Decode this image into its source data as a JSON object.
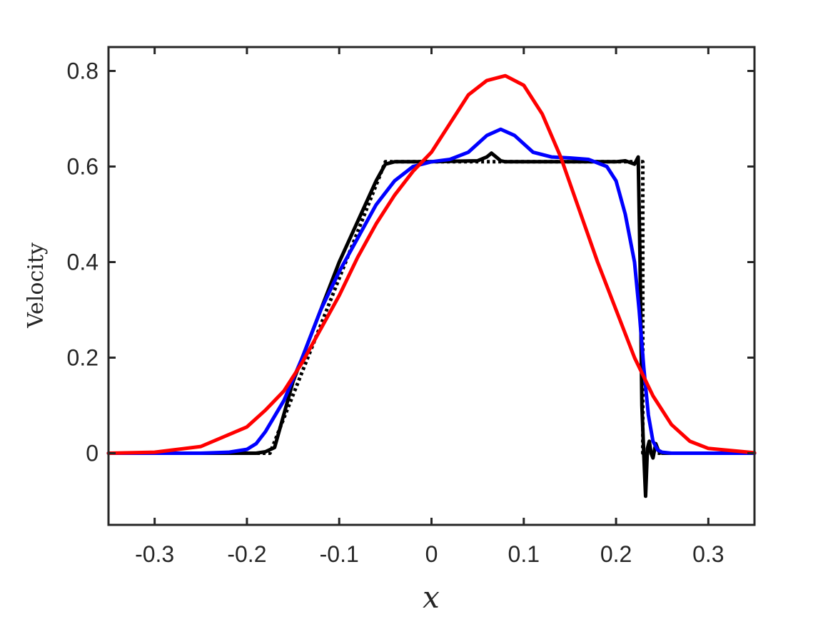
{
  "chart_data": {
    "type": "line",
    "xlabel": "x",
    "ylabel": "Velocity",
    "xlim": [
      -0.35,
      0.35
    ],
    "ylim": [
      -0.15,
      0.85
    ],
    "xticks": [
      -0.3,
      -0.2,
      -0.1,
      0,
      0.1,
      0.2,
      0.3
    ],
    "xtick_labels": [
      "-0.3",
      "-0.2",
      "-0.1",
      "0",
      "0.1",
      "0.2",
      "0.3"
    ],
    "yticks": [
      0,
      0.2,
      0.4,
      0.6,
      0.8
    ],
    "ytick_labels": [
      "0",
      "0.2",
      "0.4",
      "0.6",
      "0.8"
    ],
    "grid": false,
    "box": true,
    "series": [
      {
        "color": "#000000",
        "style": "dotted",
        "x": [
          -0.35,
          -0.175,
          -0.05,
          0.229,
          0.229,
          0.35
        ],
        "y": [
          0,
          0,
          0.61,
          0.61,
          0,
          0
        ]
      },
      {
        "color": "#000000",
        "style": "solid",
        "x": [
          -0.35,
          -0.19,
          -0.18,
          -0.17,
          -0.15,
          -0.1,
          -0.06,
          -0.05,
          -0.04,
          0.0,
          0.05,
          0.06,
          0.065,
          0.07,
          0.075,
          0.08,
          0.1,
          0.15,
          0.2,
          0.21,
          0.22,
          0.224,
          0.226,
          0.228,
          0.23,
          0.232,
          0.234,
          0.236,
          0.238,
          0.24,
          0.243,
          0.246,
          0.25,
          0.26,
          0.35
        ],
        "y": [
          0,
          0,
          0.003,
          0.012,
          0.15,
          0.4,
          0.57,
          0.605,
          0.61,
          0.61,
          0.612,
          0.62,
          0.628,
          0.62,
          0.612,
          0.61,
          0.61,
          0.61,
          0.61,
          0.612,
          0.605,
          0.62,
          0.4,
          0.1,
          0.0,
          -0.09,
          0.01,
          0.025,
          0.0,
          -0.01,
          0.02,
          0.005,
          0.0,
          0.0,
          0
        ]
      },
      {
        "color": "#0000ff",
        "style": "solid",
        "x": [
          -0.35,
          -0.25,
          -0.22,
          -0.2,
          -0.19,
          -0.18,
          -0.16,
          -0.14,
          -0.12,
          -0.1,
          -0.08,
          -0.06,
          -0.04,
          -0.02,
          0.0,
          0.02,
          0.04,
          0.06,
          0.075,
          0.09,
          0.11,
          0.13,
          0.15,
          0.17,
          0.19,
          0.2,
          0.21,
          0.22,
          0.225,
          0.23,
          0.235,
          0.24,
          0.245,
          0.25,
          0.26,
          0.35
        ],
        "y": [
          0,
          0,
          0.002,
          0.008,
          0.02,
          0.045,
          0.11,
          0.2,
          0.3,
          0.38,
          0.45,
          0.52,
          0.57,
          0.6,
          0.61,
          0.615,
          0.63,
          0.665,
          0.678,
          0.665,
          0.63,
          0.62,
          0.618,
          0.615,
          0.6,
          0.57,
          0.5,
          0.4,
          0.3,
          0.18,
          0.08,
          0.025,
          0.007,
          0.002,
          0,
          0
        ]
      },
      {
        "color": "#ff0000",
        "style": "solid",
        "x": [
          -0.35,
          -0.3,
          -0.25,
          -0.2,
          -0.18,
          -0.16,
          -0.14,
          -0.12,
          -0.1,
          -0.08,
          -0.06,
          -0.04,
          -0.02,
          0.0,
          0.02,
          0.04,
          0.06,
          0.08,
          0.1,
          0.12,
          0.14,
          0.16,
          0.18,
          0.2,
          0.22,
          0.24,
          0.26,
          0.28,
          0.3,
          0.35
        ],
        "y": [
          0,
          0.002,
          0.014,
          0.055,
          0.09,
          0.13,
          0.19,
          0.26,
          0.33,
          0.41,
          0.48,
          0.54,
          0.59,
          0.63,
          0.69,
          0.75,
          0.78,
          0.79,
          0.77,
          0.71,
          0.62,
          0.51,
          0.4,
          0.3,
          0.2,
          0.12,
          0.06,
          0.025,
          0.01,
          0.001
        ]
      }
    ]
  }
}
